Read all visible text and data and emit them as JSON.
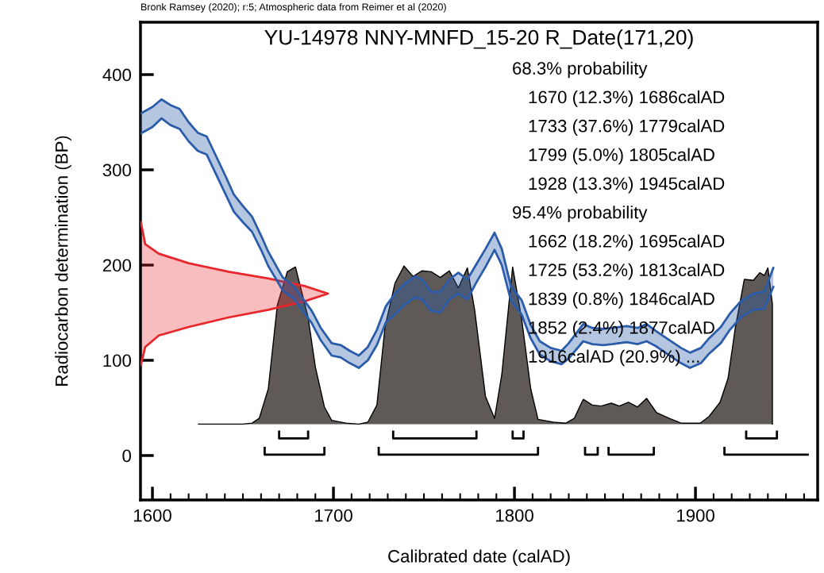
{
  "chart_data": {
    "type": "line",
    "title": "YU-14978 NNY-MNFD_15-20 R_Date(171,20)",
    "xlabel": "Calibrated date (calAD)",
    "ylabel": "Radiocarbon determination (BP)",
    "xlim": [
      1593.4,
      1967.5
    ],
    "ylim": [
      -46.7,
      455
    ],
    "xticks": [
      1600,
      1700,
      1800,
      1900
    ],
    "yticks": [
      0,
      100,
      200,
      300,
      400
    ],
    "annotations": [
      "Bronk Ramsey (2020); r:5; Atmospheric data from Reimer et al (2020)",
      "68.3% probability",
      "1670 (12.3%) 1686calAD",
      "1733 (37.6%) 1779calAD",
      "1799 (5.0%) 1805calAD",
      "1928 (13.3%) 1945calAD",
      "95.4% probability",
      "1662 (18.2%) 1695calAD",
      "1725 (53.2%) 1813calAD",
      "1839 (0.8%) 1846calAD",
      "1852 (2.4%) 1877calAD",
      "1916calAD (20.9%) ..."
    ],
    "series": [
      {
        "type": "area",
        "color": "#e8262b",
        "x": [
          1593.6,
          1596,
          1603.5,
          1620,
          1642,
          1664,
          1684,
          1697,
          1684,
          1664,
          1642,
          1620,
          1603.5,
          1596,
          1593.6
        ],
        "values": [
          245,
          222,
          212,
          202,
          193,
          186,
          178,
          170,
          162,
          153,
          145,
          135,
          126,
          114,
          95
        ]
      },
      {
        "type": "area",
        "color": "#5f5a57",
        "x": [
          1625.4,
          1650,
          1655,
          1659,
          1664,
          1669,
          1674.5,
          1679,
          1686,
          1690,
          1695,
          1699,
          1707,
          1714,
          1719,
          1724,
          1728.5,
          1734,
          1739,
          1744,
          1749,
          1754,
          1759,
          1764,
          1769,
          1774,
          1778,
          1784,
          1789,
          1793,
          1799,
          1804,
          1809,
          1813,
          1821.5,
          1828.5,
          1833,
          1838,
          1843,
          1848,
          1853.5,
          1858,
          1863,
          1868,
          1873,
          1878.5,
          1885.5,
          1892,
          1902.6,
          1907.5,
          1913.6,
          1918,
          1922,
          1927,
          1932,
          1935.5,
          1938,
          1940,
          1942.5,
          1942.5
        ],
        "values": [
          33,
          33,
          34,
          39,
          70,
          158,
          193,
          198,
          145,
          93,
          51,
          37,
          34,
          33,
          35,
          53,
          135,
          181,
          199,
          188,
          194,
          193,
          187,
          194,
          176,
          197,
          153,
          62,
          39,
          85,
          198,
          143,
          70,
          38,
          35,
          34,
          39,
          59,
          53,
          52,
          55,
          52,
          56,
          51,
          60,
          45,
          39,
          34,
          34,
          41,
          56,
          81,
          134,
          185,
          184,
          192,
          189,
          197,
          159,
          33
        ]
      },
      {
        "type": "line",
        "color": "#2a5caa",
        "x": [
          1593.4,
          1600,
          1605,
          1610,
          1615,
          1620,
          1625,
          1630,
          1640,
          1645,
          1650,
          1655,
          1660,
          1664,
          1669,
          1672,
          1678,
          1688,
          1693,
          1699,
          1704,
          1709,
          1714,
          1719,
          1724,
          1729,
          1734,
          1739,
          1745,
          1749,
          1754,
          1759,
          1764,
          1769,
          1774,
          1779,
          1784,
          1789,
          1793,
          1798,
          1804,
          1809,
          1814,
          1820,
          1826,
          1830,
          1838,
          1843,
          1849,
          1854,
          1862,
          1868,
          1873,
          1878,
          1885,
          1892,
          1897,
          1903,
          1907,
          1914,
          1919,
          1925,
          1932,
          1938,
          1943
        ],
        "values": [
          359,
          366,
          374,
          368,
          364,
          350,
          339,
          335,
          295,
          274,
          262,
          251,
          231,
          214,
          197,
          187,
          178,
          152,
          134,
          118,
          116,
          110,
          105,
          114,
          132,
          157,
          170,
          180,
          188,
          185,
          172,
          172,
          185,
          192,
          185,
          201,
          217,
          234,
          217,
          178,
          163,
          137,
          120,
          113,
          110,
          118,
          138,
          134,
          133,
          134,
          136,
          134,
          138,
          131,
          122,
          113,
          108,
          113,
          122,
          135,
          149,
          162,
          170,
          172,
          197
        ],
        "upper": [
          359,
          366,
          374,
          368,
          364,
          350,
          339,
          335,
          295,
          274,
          262,
          251,
          231,
          214,
          197,
          187,
          178,
          152,
          134,
          118,
          116,
          110,
          105,
          114,
          132,
          157,
          170,
          180,
          188,
          185,
          172,
          172,
          185,
          192,
          185,
          201,
          217,
          234,
          217,
          178,
          163,
          137,
          120,
          113,
          110,
          118,
          138,
          134,
          133,
          134,
          136,
          134,
          138,
          131,
          122,
          113,
          108,
          113,
          122,
          135,
          149,
          162,
          170,
          172,
          197
        ],
        "lower": [
          338,
          345,
          354,
          347,
          343,
          330,
          320,
          316,
          276,
          256,
          245,
          235,
          216,
          199,
          183,
          173,
          165,
          139,
          121,
          105,
          103,
          97,
          92,
          100,
          116,
          140,
          148,
          158,
          166,
          164,
          152,
          150,
          164,
          170,
          164,
          182,
          198,
          216,
          200,
          163,
          148,
          123,
          106,
          99,
          96,
          102,
          120,
          117,
          116,
          117,
          119,
          117,
          120,
          115,
          106,
          97,
          92,
          97,
          106,
          118,
          132,
          145,
          153,
          154,
          177
        ]
      },
      {
        "type": "line",
        "color": "#2a5caa",
        "x": [
          1593.4,
          1600,
          1605,
          1610,
          1615,
          1620,
          1625,
          1630,
          1640,
          1645,
          1650,
          1655,
          1660,
          1664,
          1669,
          1672,
          1678,
          1688,
          1693,
          1699,
          1704,
          1709,
          1714,
          1719,
          1724,
          1729,
          1734,
          1739,
          1745,
          1749,
          1754,
          1759,
          1764,
          1769,
          1774,
          1779,
          1784,
          1789,
          1793,
          1798,
          1804,
          1809,
          1814,
          1820,
          1826,
          1830,
          1838,
          1843,
          1849,
          1854,
          1862,
          1868,
          1873,
          1878,
          1885,
          1892,
          1897,
          1903,
          1907,
          1914,
          1919,
          1925,
          1932,
          1938,
          1943
        ],
        "values": [
          338,
          345,
          354,
          347,
          343,
          330,
          320,
          316,
          276,
          256,
          245,
          235,
          216,
          199,
          183,
          173,
          165,
          139,
          121,
          105,
          103,
          97,
          92,
          100,
          116,
          140,
          148,
          158,
          166,
          164,
          152,
          150,
          164,
          170,
          164,
          182,
          198,
          216,
          200,
          163,
          148,
          123,
          106,
          99,
          96,
          102,
          120,
          117,
          116,
          117,
          119,
          117,
          120,
          115,
          106,
          97,
          92,
          97,
          106,
          118,
          132,
          145,
          153,
          154,
          177
        ]
      },
      {
        "color": "#000000",
        "x": [
          1670,
          1670,
          1686,
          1686
        ],
        "values": [
          25,
          18,
          18,
          25
        ]
      },
      {
        "color": "#000000",
        "x": [
          1733,
          1733,
          1779,
          1779
        ],
        "values": [
          25,
          18,
          18,
          25
        ]
      },
      {
        "color": "#000000",
        "x": [
          1799,
          1799,
          1805,
          1805
        ],
        "values": [
          25,
          18,
          18,
          25
        ]
      },
      {
        "color": "#000000",
        "x": [
          1928,
          1928,
          1945,
          1945
        ],
        "values": [
          25,
          18,
          18,
          25
        ]
      },
      {
        "color": "#000000",
        "x": [
          1662,
          1662,
          1695,
          1695
        ],
        "values": [
          8,
          1,
          1,
          8
        ]
      },
      {
        "color": "#000000",
        "x": [
          1725,
          1725,
          1813,
          1813
        ],
        "values": [
          8,
          1,
          1,
          8
        ]
      },
      {
        "color": "#000000",
        "x": [
          1839,
          1839,
          1846,
          1846
        ],
        "values": [
          8,
          1,
          1,
          8
        ]
      },
      {
        "color": "#000000",
        "x": [
          1852,
          1852,
          1877,
          1877
        ],
        "values": [
          8,
          1,
          1,
          8
        ]
      },
      {
        "color": "#000000",
        "x": [
          1916,
          1916,
          1962
        ],
        "values": [
          8,
          1,
          1
        ]
      }
    ]
  }
}
